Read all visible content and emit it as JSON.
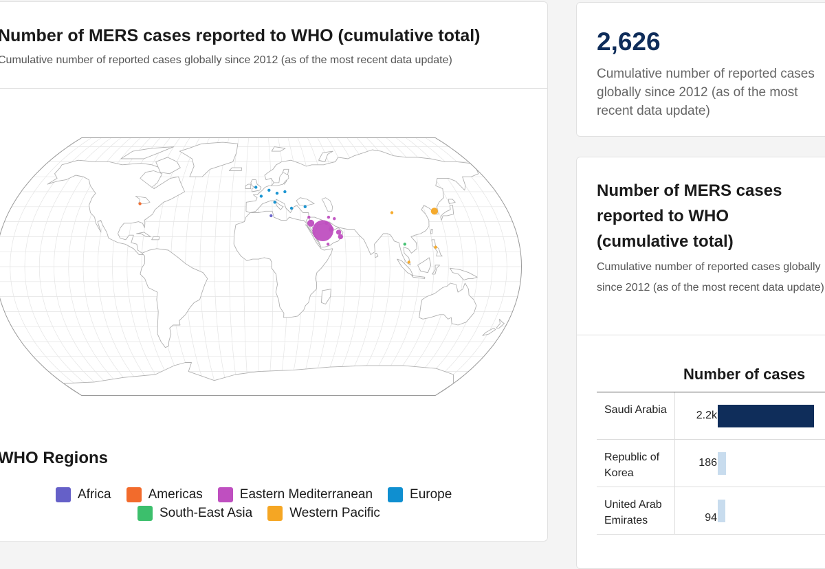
{
  "map_card": {
    "title": "Number of MERS cases reported to WHO (cumulative total)",
    "subtitle": "Cumulative number of reported cases globally since 2012 (as of the most recent data update)",
    "legend_title": "WHO Regions",
    "legend": [
      {
        "label": "Africa",
        "color": "#6560c8"
      },
      {
        "label": "Americas",
        "color": "#f26b2c"
      },
      {
        "label": "Eastern Mediterranean",
        "color": "#bf4fc0"
      },
      {
        "label": "Europe",
        "color": "#0f8fd0"
      },
      {
        "label": "South-East Asia",
        "color": "#3cbf6c"
      },
      {
        "label": "Western Pacific",
        "color": "#f5a623"
      }
    ],
    "bubbles": [
      {
        "region": "Americas",
        "lon": -87,
        "lat": 42,
        "size": 1
      },
      {
        "region": "Europe",
        "lon": -2,
        "lat": 53,
        "size": 1
      },
      {
        "region": "Europe",
        "lon": 8,
        "lat": 51,
        "size": 1
      },
      {
        "region": "Europe",
        "lon": 14,
        "lat": 49,
        "size": 1
      },
      {
        "region": "Europe",
        "lon": 20,
        "lat": 50,
        "size": 1
      },
      {
        "region": "Europe",
        "lon": 2,
        "lat": 47,
        "size": 1
      },
      {
        "region": "Europe",
        "lon": 12,
        "lat": 43,
        "size": 1
      },
      {
        "region": "Europe",
        "lon": 24,
        "lat": 39,
        "size": 1
      },
      {
        "region": "Europe",
        "lon": 34,
        "lat": 40,
        "size": 1
      },
      {
        "region": "Africa",
        "lon": 9,
        "lat": 34,
        "size": 1
      },
      {
        "region": "Eastern Mediterranean",
        "lon": 36,
        "lat": 33,
        "size": 1
      },
      {
        "region": "Eastern Mediterranean",
        "lon": 37,
        "lat": 29,
        "size": 3
      },
      {
        "region": "Eastern Mediterranean",
        "lon": 50,
        "lat": 33,
        "size": 1
      },
      {
        "region": "Eastern Mediterranean",
        "lon": 54,
        "lat": 32,
        "size": 1
      },
      {
        "region": "Eastern Mediterranean",
        "lon": 48,
        "lat": 29,
        "size": 1
      },
      {
        "region": "Eastern Mediterranean",
        "lon": 51,
        "lat": 25,
        "size": 2
      },
      {
        "region": "Eastern Mediterranean",
        "lon": 56,
        "lat": 23,
        "size": 2
      },
      {
        "region": "Eastern Mediterranean",
        "lon": 57,
        "lat": 20,
        "size": 2
      },
      {
        "region": "Eastern Mediterranean",
        "lon": 45,
        "lat": 24,
        "size": 10
      },
      {
        "region": "Eastern Mediterranean",
        "lon": 48,
        "lat": 15,
        "size": 1
      },
      {
        "region": "South-East Asia",
        "lon": 101,
        "lat": 15,
        "size": 1
      },
      {
        "region": "Western Pacific",
        "lon": 96,
        "lat": 36,
        "size": 1
      },
      {
        "region": "Western Pacific",
        "lon": 127,
        "lat": 37,
        "size": 3
      },
      {
        "region": "Western Pacific",
        "lon": 122,
        "lat": 13,
        "size": 1
      },
      {
        "region": "Western Pacific",
        "lon": 103,
        "lat": 3,
        "size": 1
      }
    ]
  },
  "kpi": {
    "value": "2,626",
    "description": "Cumulative number of reported cases globally since 2012 (as of the most recent data update)"
  },
  "table_card": {
    "title": "Number of MERS cases reported to WHO (cumulative total)",
    "subtitle": "Cumulative number of reported cases globally since 2012 (as of the most recent data update)",
    "column_header": "Number of cases",
    "bar_colors": {
      "top": "#0f2d5a",
      "other": "#c8dcee"
    },
    "rows": [
      {
        "country": "Saudi Arabia",
        "value_label": "2.2k",
        "value": 2200
      },
      {
        "country": "Republic of Korea",
        "value_label": "186",
        "value": 186
      },
      {
        "country": "United Arab Emirates",
        "value_label": "94",
        "value": 94
      }
    ]
  }
}
